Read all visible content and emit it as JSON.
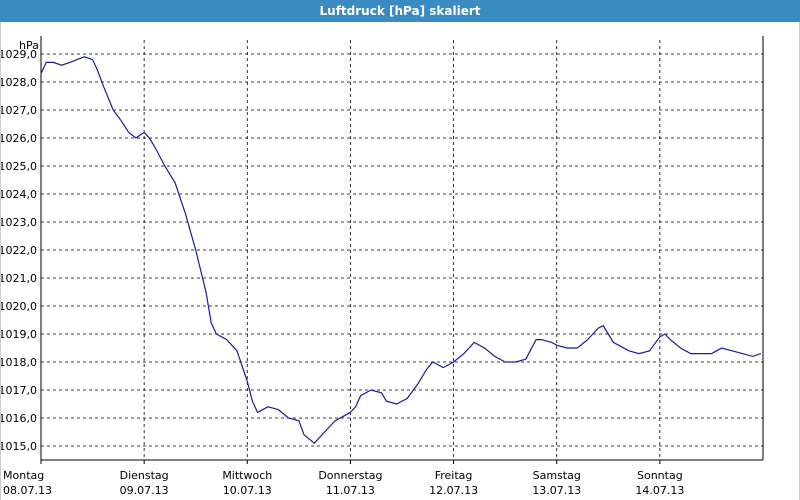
{
  "window": {
    "title": "Luftdruck [hPa] skaliert"
  },
  "colors": {
    "titlebar": "#3b8bc3",
    "line": "#1a1aa0",
    "grid": "#000000",
    "background": "#ffffff"
  },
  "chart_data": {
    "type": "line",
    "title": "Luftdruck [hPa] skaliert",
    "ylabel": "hPa",
    "xlabel": "",
    "ylim": [
      1014.5,
      1029.5
    ],
    "y_ticks": [
      "1015,0",
      "1016,0",
      "1017,0",
      "1018,0",
      "1019,0",
      "1020,0",
      "1021,0",
      "1022,0",
      "1023,0",
      "1024,0",
      "1025,0",
      "1026,0",
      "1027,0",
      "1028,0",
      "1029,0"
    ],
    "y_tick_values": [
      1015,
      1016,
      1017,
      1018,
      1019,
      1020,
      1021,
      1022,
      1023,
      1024,
      1025,
      1026,
      1027,
      1028,
      1029
    ],
    "x_ticks": [
      {
        "day": "Montag",
        "date": "08.07.13"
      },
      {
        "day": "Dienstag",
        "date": "09.07.13"
      },
      {
        "day": "Mittwoch",
        "date": "10.07.13"
      },
      {
        "day": "Donnerstag",
        "date": "11.07.13"
      },
      {
        "day": "Freitag",
        "date": "12.07.13"
      },
      {
        "day": "Samstag",
        "date": "13.07.13"
      },
      {
        "day": "Sonntag",
        "date": "14.07.13"
      }
    ],
    "xlim": [
      0,
      7
    ],
    "grid": true,
    "series": [
      {
        "x": [
          0,
          0.05,
          0.12,
          0.2,
          0.28,
          0.35,
          0.42,
          0.5,
          0.55,
          0.6,
          0.7,
          0.78,
          0.85,
          0.92,
          1.0,
          1.05,
          1.1,
          1.2,
          1.3,
          1.4,
          1.5,
          1.6,
          1.65,
          1.7,
          1.75,
          1.8,
          1.9,
          2.0,
          2.05,
          2.1,
          2.2,
          2.3,
          2.4,
          2.5,
          2.55,
          2.65,
          2.75,
          2.85,
          2.95,
          3.0,
          3.05,
          3.1,
          3.2,
          3.3,
          3.35,
          3.45,
          3.55,
          3.65,
          3.75,
          3.8,
          3.9,
          4.0,
          4.1,
          4.2,
          4.3,
          4.4,
          4.5,
          4.55,
          4.6,
          4.7,
          4.8,
          4.85,
          4.95,
          5.0,
          5.1,
          5.2,
          5.3,
          5.4,
          5.45,
          5.5,
          5.55,
          5.6,
          5.7,
          5.8,
          5.9,
          6.0,
          6.05,
          6.1,
          6.2,
          6.3,
          6.4,
          6.5,
          6.55,
          6.6,
          6.7,
          6.8,
          6.9,
          6.98
        ],
        "y": [
          1028.3,
          1028.7,
          1028.7,
          1028.6,
          1028.7,
          1028.8,
          1028.9,
          1028.8,
          1028.4,
          1027.9,
          1027.0,
          1026.6,
          1026.2,
          1026.0,
          1026.2,
          1026.0,
          1025.7,
          1025.0,
          1024.4,
          1023.3,
          1022.0,
          1020.5,
          1019.4,
          1019.0,
          1018.9,
          1018.8,
          1018.4,
          1017.3,
          1016.6,
          1016.2,
          1016.4,
          1016.3,
          1016.0,
          1015.9,
          1015.4,
          1015.1,
          1015.5,
          1015.9,
          1016.1,
          1016.2,
          1016.4,
          1016.8,
          1017.0,
          1016.9,
          1016.6,
          1016.5,
          1016.7,
          1017.2,
          1017.8,
          1018.0,
          1017.8,
          1018.0,
          1018.3,
          1018.7,
          1018.5,
          1018.2,
          1018.0,
          1018.0,
          1018.0,
          1018.1,
          1018.8,
          1018.8,
          1018.7,
          1018.6,
          1018.5,
          1018.5,
          1018.8,
          1019.2,
          1019.3,
          1019.0,
          1018.7,
          1018.6,
          1018.4,
          1018.3,
          1018.4,
          1018.9,
          1019.0,
          1018.8,
          1018.5,
          1018.3,
          1018.3,
          1018.3,
          1018.4,
          1018.5,
          1018.4,
          1018.3,
          1018.2,
          1018.3
        ]
      }
    ]
  }
}
